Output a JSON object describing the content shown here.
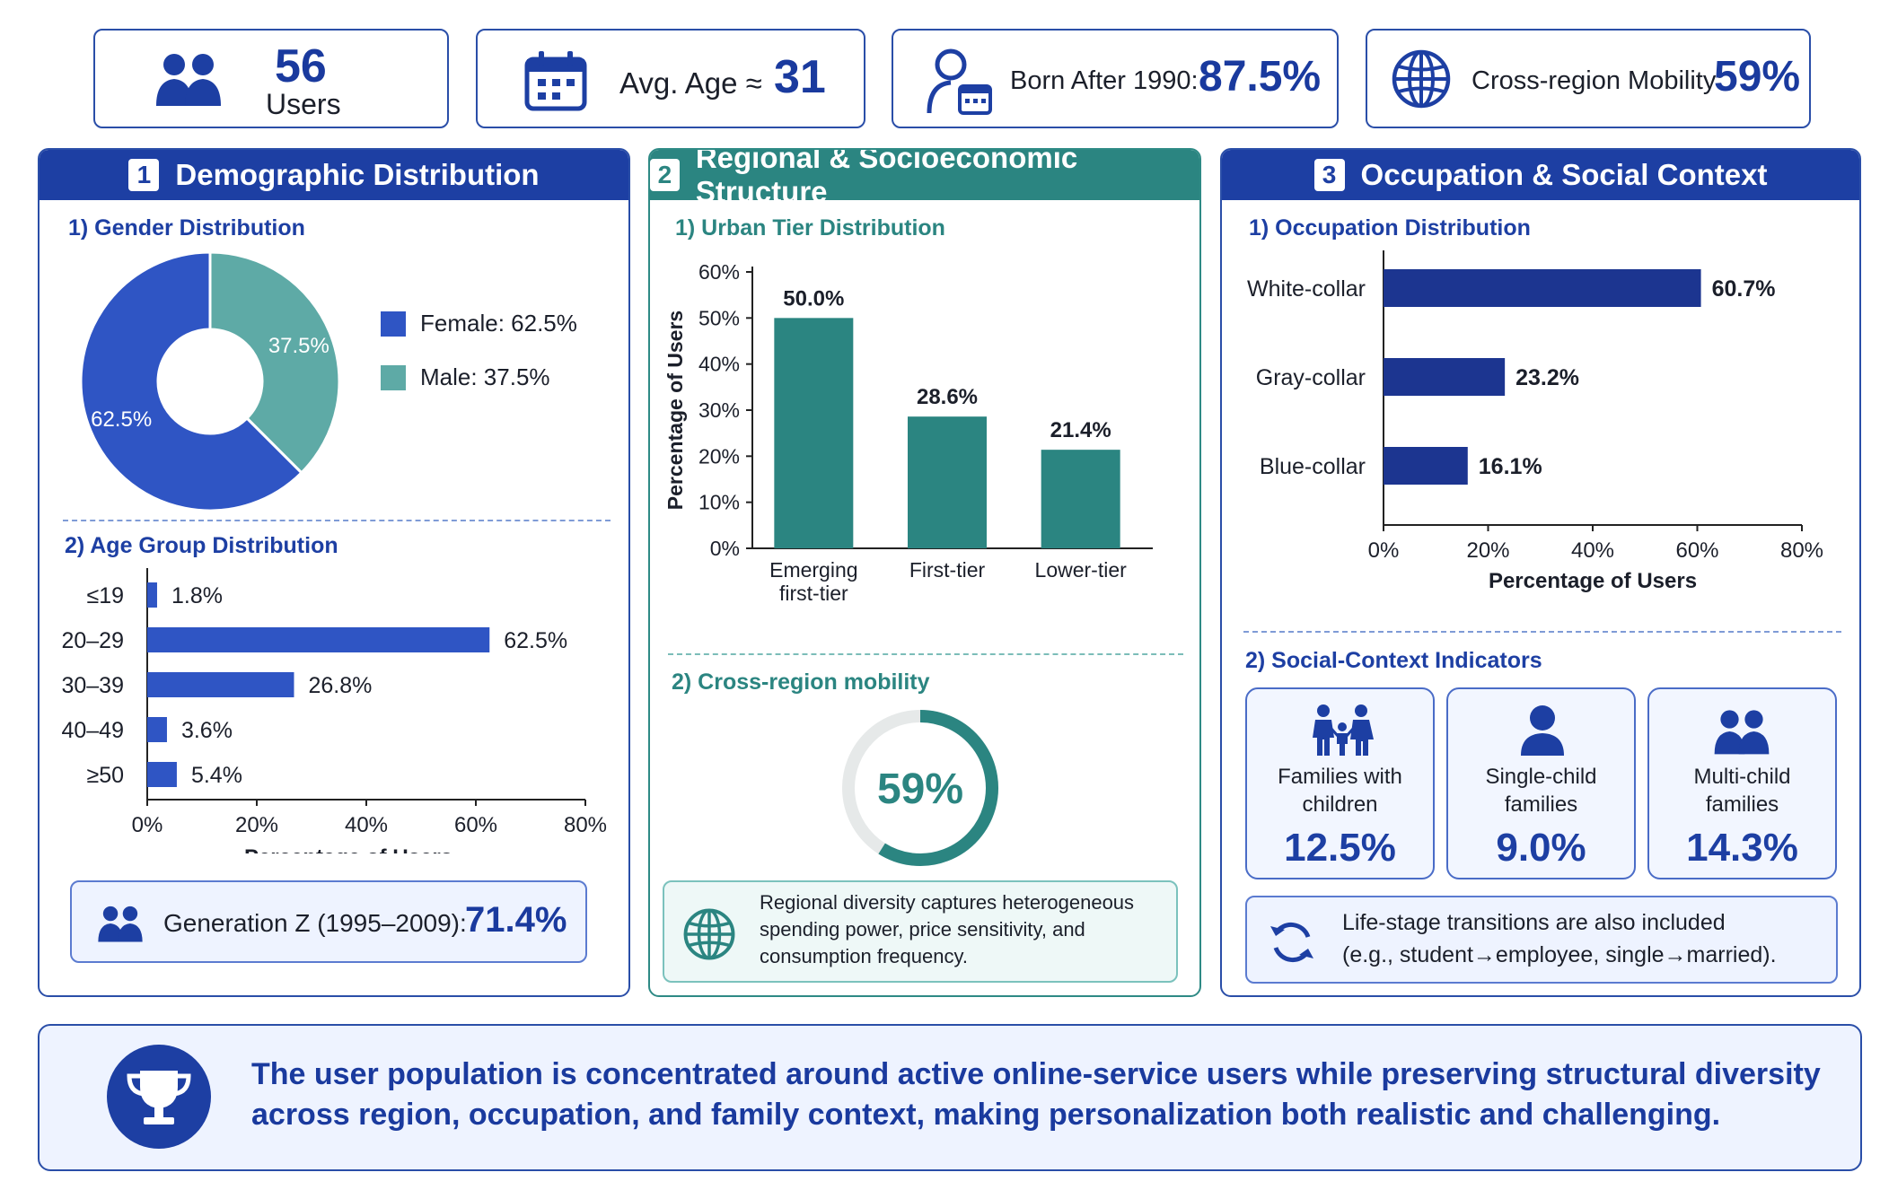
{
  "stats": {
    "users_value": "56",
    "users_label": "Users",
    "age_label": "Avg. Age ≈",
    "age_value": "31",
    "born_label": "Born After 1990:",
    "born_value": "87.5%",
    "mobility_label": "Cross-region Mobility:",
    "mobility_value": "59%"
  },
  "panel1": {
    "num": "1",
    "title": "Demographic Distribution",
    "gender_title": "1) Gender Distribution",
    "age_title": "2) Age Group Distribution",
    "genz_label": "Generation Z (1995–2009):",
    "genz_value": "71.4%"
  },
  "panel2": {
    "num": "2",
    "title": "Regional & Socioeconomic Structure",
    "tier_title": "1) Urban Tier Distribution",
    "mobility_title": "2) Cross-region mobility",
    "mobility_value": "59%",
    "note_lines": [
      "Regional diversity captures heterogeneous",
      "spending power, price sensitivity, and",
      "consumption frequency."
    ]
  },
  "panel3": {
    "num": "3",
    "title": "Occupation & Social Context",
    "occ_title": "1) Occupation Distribution",
    "social_title": "2) Social-Context Indicators",
    "cards": [
      {
        "label1": "Families with",
        "label2": "children",
        "value": "12.5%",
        "icon": "family-icon"
      },
      {
        "label1": "Single-child",
        "label2": "families",
        "value": "9.0%",
        "icon": "single-person-icon"
      },
      {
        "label1": "Multi-child",
        "label2": "families",
        "value": "14.3%",
        "icon": "two-people-icon"
      }
    ],
    "transition_lines": [
      "Life-stage transitions are also included",
      "(e.g., student→employee, single→married)."
    ]
  },
  "banner": {
    "lines": [
      "The user population is concentrated around active online-service users while preserving structural diversity",
      "across region, occupation, and family context, making personalization both realistic and challenging."
    ]
  },
  "colors": {
    "navy": "#1d3fa3",
    "teal": "#2b8581",
    "teal_light": "#5eaaa6",
    "bar_blue": "#2f55c4",
    "occ_navy": "#1c3590"
  },
  "chart_data": [
    {
      "type": "pie",
      "title": "1) Gender Distribution",
      "categories": [
        "Female",
        "Male"
      ],
      "values": [
        62.5,
        37.5
      ],
      "slice_labels": [
        "62.5%",
        "37.5%"
      ],
      "legend": [
        "Female: 62.5%",
        "Male: 37.5%"
      ],
      "legend_position": "right",
      "colors": [
        "#2f55c4",
        "#5eaaa6"
      ]
    },
    {
      "type": "bar",
      "orientation": "horizontal",
      "title": "2) Age Group Distribution",
      "categories": [
        "≤19",
        "20–29",
        "30–39",
        "40–49",
        "≥50"
      ],
      "values": [
        1.8,
        62.5,
        26.8,
        3.6,
        5.4
      ],
      "value_labels": [
        "1.8%",
        "62.5%",
        "26.8%",
        "3.6%",
        "5.4%"
      ],
      "xlabel": "Percentage of Users",
      "xlim": [
        0,
        80
      ],
      "xticks": [
        "0%",
        "20%",
        "40%",
        "60%",
        "80%"
      ],
      "color": "#2f55c4"
    },
    {
      "type": "bar",
      "title": "1) Urban Tier Distribution",
      "categories": [
        [
          "Emerging",
          "first-tier"
        ],
        [
          "First-tier"
        ],
        [
          "Lower-tier"
        ]
      ],
      "values": [
        50.0,
        28.6,
        21.4
      ],
      "value_labels": [
        "50.0%",
        "28.6%",
        "21.4%"
      ],
      "ylabel": "Percentage of Users",
      "ylim": [
        0,
        60
      ],
      "yticks": [
        "0%",
        "10%",
        "20%",
        "30%",
        "40%",
        "50%",
        "60%"
      ],
      "color": "#2b8581"
    },
    {
      "type": "pie",
      "title": "2) Cross-region mobility",
      "values": [
        59,
        41
      ],
      "center_label": "59%",
      "colors": [
        "#2b8581",
        "#e6e9e9"
      ]
    },
    {
      "type": "bar",
      "orientation": "horizontal",
      "title": "1) Occupation Distribution",
      "categories": [
        "White-collar",
        "Gray-collar",
        "Blue-collar"
      ],
      "values": [
        60.7,
        23.2,
        16.1
      ],
      "value_labels": [
        "60.7%",
        "23.2%",
        "16.1%"
      ],
      "xlabel": "Percentage of Users",
      "xlim": [
        0,
        80
      ],
      "xticks": [
        "0%",
        "20%",
        "40%",
        "60%",
        "80%"
      ],
      "color": "#1c3590"
    }
  ]
}
